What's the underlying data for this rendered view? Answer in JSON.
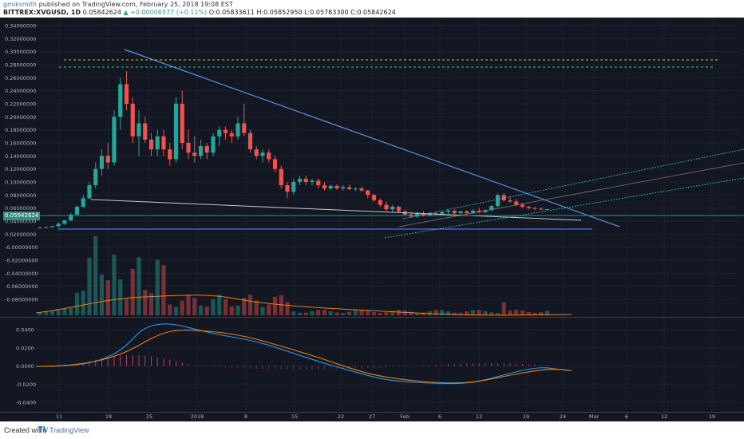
{
  "header": {
    "author": "gmiksmith",
    "published_text": "published on TradingView.com, February 25, 2018 19:08 EST",
    "symbol": "BITTREX:XVGUSD, 1D",
    "last": "0.05842624",
    "change": "▲ +0.00006577 (+0.11%)",
    "o_label": "O:",
    "o_value": "0.05833611",
    "h_label": "H:",
    "h_value": "0.05852950",
    "l_label": "L:",
    "l_value": "0.05783300",
    "c_label": "C:",
    "c_value": "0.05842624"
  },
  "price_axis": {
    "labels": [
      "0.34000000",
      "0.32000000",
      "0.30000000",
      "0.28000000",
      "0.26000000",
      "0.24000000",
      "0.22000000",
      "0.20000000",
      "0.18000000",
      "0.16000000",
      "0.14000000",
      "0.12000000",
      "0.10000000",
      "0.08000000",
      "0.06000000",
      "0.04000000",
      "0.02000000",
      "-0.00000000",
      "-0.02000000",
      "-0.04000000",
      "-0.06000000",
      "-0.08000000"
    ],
    "current_price": "0.05842624"
  },
  "macd_axis": {
    "labels": [
      "0.0400",
      "0.0200",
      "0.0000",
      "-0.0200",
      "-0.0400"
    ]
  },
  "time_axis": {
    "labels": [
      "11",
      "18",
      "25",
      "2018",
      "8",
      "15",
      "22",
      "27",
      "Feb",
      "6",
      "12",
      "19",
      "24",
      "Mar",
      "6",
      "12",
      "19"
    ]
  },
  "footer": {
    "created_with": "Created with",
    "brand": "TradingView"
  },
  "colors": {
    "background": "#131722",
    "up": "#26a69a",
    "down": "#ef5350",
    "macd": "#2196f3",
    "signal": "#f57c00",
    "trendline": "#5b8fe0"
  },
  "chart_data": {
    "type": "candlestick",
    "symbol": "XVGUSD",
    "exchange": "BITTREX",
    "interval": "1D",
    "ohlc_sample": [
      {
        "o": 0.03,
        "h": 0.031,
        "l": 0.029,
        "c": 0.03
      },
      {
        "o": 0.03,
        "h": 0.032,
        "l": 0.0295,
        "c": 0.0305
      },
      {
        "o": 0.0305,
        "h": 0.033,
        "l": 0.03,
        "c": 0.032
      },
      {
        "o": 0.032,
        "h": 0.038,
        "l": 0.031,
        "c": 0.036
      },
      {
        "o": 0.036,
        "h": 0.042,
        "l": 0.034,
        "c": 0.041
      },
      {
        "o": 0.041,
        "h": 0.052,
        "l": 0.04,
        "c": 0.05
      },
      {
        "o": 0.05,
        "h": 0.064,
        "l": 0.048,
        "c": 0.062
      },
      {
        "o": 0.062,
        "h": 0.08,
        "l": 0.06,
        "c": 0.075
      },
      {
        "o": 0.075,
        "h": 0.1,
        "l": 0.073,
        "c": 0.095
      },
      {
        "o": 0.095,
        "h": 0.13,
        "l": 0.09,
        "c": 0.12
      },
      {
        "o": 0.12,
        "h": 0.15,
        "l": 0.11,
        "c": 0.14
      },
      {
        "o": 0.14,
        "h": 0.16,
        "l": 0.12,
        "c": 0.13
      },
      {
        "o": 0.13,
        "h": 0.21,
        "l": 0.125,
        "c": 0.2
      },
      {
        "o": 0.2,
        "h": 0.26,
        "l": 0.18,
        "c": 0.25
      },
      {
        "o": 0.25,
        "h": 0.27,
        "l": 0.21,
        "c": 0.22
      },
      {
        "o": 0.22,
        "h": 0.23,
        "l": 0.16,
        "c": 0.17
      },
      {
        "o": 0.17,
        "h": 0.21,
        "l": 0.14,
        "c": 0.19
      },
      {
        "o": 0.19,
        "h": 0.2,
        "l": 0.16,
        "c": 0.165
      },
      {
        "o": 0.165,
        "h": 0.175,
        "l": 0.14,
        "c": 0.15
      },
      {
        "o": 0.15,
        "h": 0.18,
        "l": 0.14,
        "c": 0.17
      },
      {
        "o": 0.17,
        "h": 0.18,
        "l": 0.14,
        "c": 0.15
      },
      {
        "o": 0.15,
        "h": 0.16,
        "l": 0.125,
        "c": 0.135
      },
      {
        "o": 0.135,
        "h": 0.23,
        "l": 0.13,
        "c": 0.22
      },
      {
        "o": 0.22,
        "h": 0.24,
        "l": 0.15,
        "c": 0.16
      },
      {
        "o": 0.16,
        "h": 0.18,
        "l": 0.135,
        "c": 0.145
      },
      {
        "o": 0.145,
        "h": 0.17,
        "l": 0.13,
        "c": 0.14
      },
      {
        "o": 0.14,
        "h": 0.165,
        "l": 0.135,
        "c": 0.155
      },
      {
        "o": 0.155,
        "h": 0.16,
        "l": 0.135,
        "c": 0.145
      },
      {
        "o": 0.145,
        "h": 0.175,
        "l": 0.14,
        "c": 0.17
      },
      {
        "o": 0.17,
        "h": 0.185,
        "l": 0.155,
        "c": 0.18
      },
      {
        "o": 0.18,
        "h": 0.185,
        "l": 0.165,
        "c": 0.175
      },
      {
        "o": 0.175,
        "h": 0.18,
        "l": 0.16,
        "c": 0.17
      },
      {
        "o": 0.17,
        "h": 0.2,
        "l": 0.165,
        "c": 0.19
      },
      {
        "o": 0.19,
        "h": 0.22,
        "l": 0.17,
        "c": 0.175
      },
      {
        "o": 0.175,
        "h": 0.18,
        "l": 0.145,
        "c": 0.15
      },
      {
        "o": 0.15,
        "h": 0.155,
        "l": 0.135,
        "c": 0.14
      },
      {
        "o": 0.14,
        "h": 0.15,
        "l": 0.13,
        "c": 0.145
      },
      {
        "o": 0.145,
        "h": 0.15,
        "l": 0.13,
        "c": 0.135
      },
      {
        "o": 0.135,
        "h": 0.14,
        "l": 0.115,
        "c": 0.12
      },
      {
        "o": 0.12,
        "h": 0.125,
        "l": 0.09,
        "c": 0.095
      },
      {
        "o": 0.095,
        "h": 0.1,
        "l": 0.075,
        "c": 0.085
      },
      {
        "o": 0.085,
        "h": 0.105,
        "l": 0.08,
        "c": 0.1
      },
      {
        "o": 0.1,
        "h": 0.11,
        "l": 0.095,
        "c": 0.105
      },
      {
        "o": 0.105,
        "h": 0.11,
        "l": 0.095,
        "c": 0.1
      },
      {
        "o": 0.1,
        "h": 0.105,
        "l": 0.095,
        "c": 0.102
      },
      {
        "o": 0.102,
        "h": 0.105,
        "l": 0.09,
        "c": 0.095
      },
      {
        "o": 0.095,
        "h": 0.1,
        "l": 0.087,
        "c": 0.09
      },
      {
        "o": 0.09,
        "h": 0.096,
        "l": 0.088,
        "c": 0.094
      },
      {
        "o": 0.094,
        "h": 0.096,
        "l": 0.088,
        "c": 0.09
      },
      {
        "o": 0.09,
        "h": 0.095,
        "l": 0.087,
        "c": 0.092
      },
      {
        "o": 0.092,
        "h": 0.096,
        "l": 0.088,
        "c": 0.089
      },
      {
        "o": 0.089,
        "h": 0.092,
        "l": 0.086,
        "c": 0.09
      },
      {
        "o": 0.09,
        "h": 0.093,
        "l": 0.085,
        "c": 0.087
      },
      {
        "o": 0.087,
        "h": 0.088,
        "l": 0.075,
        "c": 0.08
      },
      {
        "o": 0.08,
        "h": 0.082,
        "l": 0.07,
        "c": 0.072
      },
      {
        "o": 0.072,
        "h": 0.075,
        "l": 0.062,
        "c": 0.065
      },
      {
        "o": 0.065,
        "h": 0.07,
        "l": 0.055,
        "c": 0.058
      },
      {
        "o": 0.058,
        "h": 0.065,
        "l": 0.054,
        "c": 0.062
      },
      {
        "o": 0.062,
        "h": 0.064,
        "l": 0.052,
        "c": 0.055
      },
      {
        "o": 0.055,
        "h": 0.058,
        "l": 0.048,
        "c": 0.05
      },
      {
        "o": 0.05,
        "h": 0.054,
        "l": 0.045,
        "c": 0.047
      },
      {
        "o": 0.047,
        "h": 0.054,
        "l": 0.045,
        "c": 0.052
      },
      {
        "o": 0.052,
        "h": 0.055,
        "l": 0.047,
        "c": 0.049
      },
      {
        "o": 0.049,
        "h": 0.054,
        "l": 0.047,
        "c": 0.052
      },
      {
        "o": 0.052,
        "h": 0.055,
        "l": 0.049,
        "c": 0.051
      },
      {
        "o": 0.051,
        "h": 0.056,
        "l": 0.049,
        "c": 0.054
      },
      {
        "o": 0.054,
        "h": 0.058,
        "l": 0.051,
        "c": 0.056
      },
      {
        "o": 0.056,
        "h": 0.058,
        "l": 0.05,
        "c": 0.052
      },
      {
        "o": 0.052,
        "h": 0.056,
        "l": 0.05,
        "c": 0.055
      },
      {
        "o": 0.055,
        "h": 0.057,
        "l": 0.05,
        "c": 0.052
      },
      {
        "o": 0.052,
        "h": 0.058,
        "l": 0.051,
        "c": 0.056
      },
      {
        "o": 0.056,
        "h": 0.06,
        "l": 0.052,
        "c": 0.054
      },
      {
        "o": 0.054,
        "h": 0.058,
        "l": 0.052,
        "c": 0.057
      },
      {
        "o": 0.057,
        "h": 0.065,
        "l": 0.055,
        "c": 0.063
      },
      {
        "o": 0.063,
        "h": 0.082,
        "l": 0.061,
        "c": 0.08
      },
      {
        "o": 0.08,
        "h": 0.083,
        "l": 0.07,
        "c": 0.072
      },
      {
        "o": 0.072,
        "h": 0.078,
        "l": 0.068,
        "c": 0.07
      },
      {
        "o": 0.07,
        "h": 0.074,
        "l": 0.063,
        "c": 0.065
      },
      {
        "o": 0.065,
        "h": 0.068,
        "l": 0.06,
        "c": 0.062
      },
      {
        "o": 0.062,
        "h": 0.064,
        "l": 0.058,
        "c": 0.06
      },
      {
        "o": 0.06,
        "h": 0.062,
        "l": 0.057,
        "c": 0.059
      },
      {
        "o": 0.059,
        "h": 0.061,
        "l": 0.057,
        "c": 0.058
      },
      {
        "o": 0.0583,
        "h": 0.0585,
        "l": 0.0578,
        "c": 0.0584
      }
    ]
  }
}
